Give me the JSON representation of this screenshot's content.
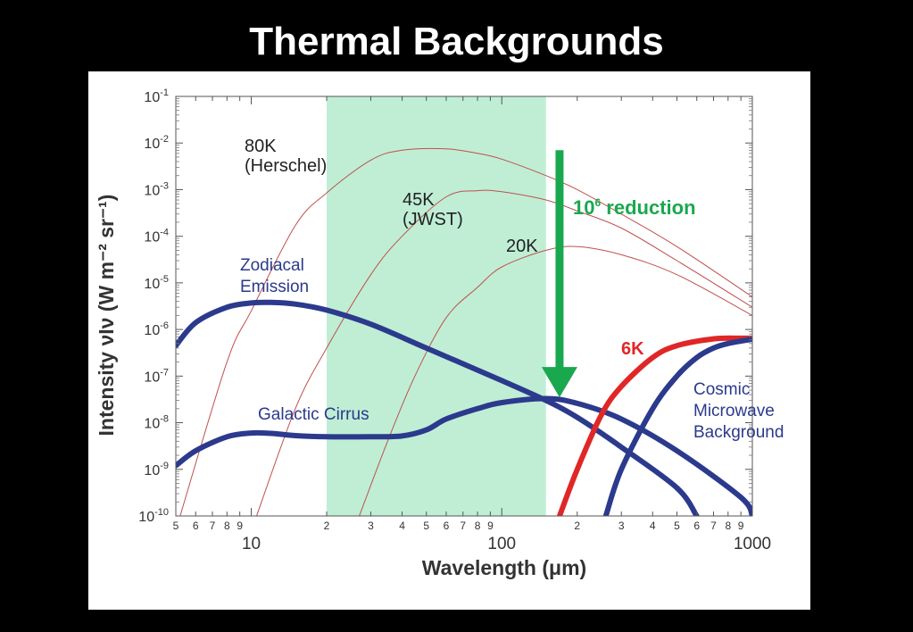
{
  "slide": {
    "title": "Thermal Backgrounds"
  },
  "chart_data": {
    "type": "line",
    "x_scale": "log",
    "y_scale": "log",
    "xlim": [
      5,
      1000
    ],
    "ylim": [
      1e-10,
      0.1
    ],
    "xlabel": "Wavelength (μm)",
    "ylabel": "Intensity νIν (W m⁻² sr⁻¹)",
    "grid": false,
    "x_major_ticks": [
      {
        "value": 10,
        "label": "10"
      },
      {
        "value": 100,
        "label": "100"
      },
      {
        "value": 1000,
        "label": "1000"
      }
    ],
    "x_minor_ticks": [
      {
        "value": 5,
        "label": "5"
      },
      {
        "value": 6,
        "label": "6"
      },
      {
        "value": 7,
        "label": "7"
      },
      {
        "value": 8,
        "label": "8"
      },
      {
        "value": 9,
        "label": "9"
      },
      {
        "value": 20,
        "label": "2"
      },
      {
        "value": 30,
        "label": "3"
      },
      {
        "value": 40,
        "label": "4"
      },
      {
        "value": 50,
        "label": "5"
      },
      {
        "value": 60,
        "label": "6"
      },
      {
        "value": 70,
        "label": "7"
      },
      {
        "value": 80,
        "label": "8"
      },
      {
        "value": 90,
        "label": "9"
      },
      {
        "value": 200,
        "label": "2"
      },
      {
        "value": 300,
        "label": "3"
      },
      {
        "value": 400,
        "label": "4"
      },
      {
        "value": 500,
        "label": "5"
      },
      {
        "value": 600,
        "label": "6"
      },
      {
        "value": 700,
        "label": "7"
      },
      {
        "value": 800,
        "label": "8"
      },
      {
        "value": 900,
        "label": "9"
      }
    ],
    "y_ticks": [
      {
        "value": 0.1,
        "base": "10",
        "exp": "-1"
      },
      {
        "value": 0.01,
        "base": "10",
        "exp": "-2"
      },
      {
        "value": 0.001,
        "base": "10",
        "exp": "-3"
      },
      {
        "value": 0.0001,
        "base": "10",
        "exp": "-4"
      },
      {
        "value": 1e-05,
        "base": "10",
        "exp": "-5"
      },
      {
        "value": 1e-06,
        "base": "10",
        "exp": "-6"
      },
      {
        "value": 1e-07,
        "base": "10",
        "exp": "-7"
      },
      {
        "value": 1e-08,
        "base": "10",
        "exp": "-8"
      },
      {
        "value": 1e-09,
        "base": "10",
        "exp": "-9"
      },
      {
        "value": 1e-10,
        "base": "10",
        "exp": "-10"
      }
    ],
    "shaded_band": {
      "x": [
        20,
        150
      ],
      "color": "#bfeed5"
    },
    "reduction_arrow": {
      "x": 170,
      "y_from": 0.007,
      "y_to": 3.5e-08,
      "color": "#1aa84f"
    },
    "series": [
      {
        "name": "80K (Herschel)",
        "color": "#c0504d",
        "width": 1,
        "x": [
          5.2,
          8,
          10,
          15,
          20,
          30,
          40,
          60,
          80,
          100,
          150,
          200,
          300,
          500,
          1000
        ],
        "y": [
          1e-10,
          2e-07,
          2.5e-06,
          0.00017,
          0.00085,
          0.0043,
          0.007,
          0.0075,
          0.006,
          0.0045,
          0.002,
          0.001,
          0.0003,
          6e-05,
          5e-06
        ]
      },
      {
        "name": "45K (JWST)",
        "color": "#c0504d",
        "width": 1,
        "x": [
          10.5,
          15,
          20,
          30,
          40,
          60,
          80,
          100,
          150,
          200,
          300,
          500,
          1000
        ],
        "y": [
          1e-10,
          2e-08,
          4e-07,
          1.5e-05,
          0.0001,
          0.0007,
          0.00095,
          0.0009,
          0.0006,
          0.00035,
          0.00015,
          3e-05,
          3e-06
        ]
      },
      {
        "name": "20K",
        "color": "#c0504d",
        "width": 1,
        "x": [
          27,
          35,
          45,
          60,
          80,
          100,
          150,
          200,
          300,
          500,
          1000
        ],
        "y": [
          1e-10,
          4e-09,
          1e-07,
          1.8e-06,
          8e-06,
          2.2e-05,
          5e-05,
          6e-05,
          4e-05,
          1.5e-05,
          2e-06
        ]
      },
      {
        "name": "Zodiacal Emission",
        "color": "#2b3a8c",
        "width": 6,
        "x": [
          5,
          6,
          8,
          10,
          12,
          15,
          20,
          30,
          50,
          100,
          150,
          200,
          300,
          500,
          600
        ],
        "y": [
          4.5e-07,
          1.4e-06,
          3e-06,
          3.7e-06,
          3.8e-06,
          3.5e-06,
          2.6e-06,
          1.3e-06,
          4e-07,
          8e-08,
          3e-08,
          1.3e-08,
          3e-09,
          4e-10,
          1e-10
        ]
      },
      {
        "name": "Galactic Cirrus",
        "color": "#2b3a8c",
        "width": 6,
        "x": [
          5,
          6,
          8,
          10,
          12,
          15,
          20,
          30,
          40,
          50,
          60,
          80,
          100,
          150,
          200,
          300,
          500,
          900,
          1000
        ],
        "y": [
          1.2e-09,
          2.5e-09,
          5e-09,
          6e-09,
          5.9e-09,
          5.3e-09,
          5e-09,
          5e-09,
          5.2e-09,
          7e-09,
          1.2e-08,
          2e-08,
          2.7e-08,
          3.3e-08,
          2.6e-08,
          1.2e-08,
          2.5e-09,
          2.5e-10,
          1e-10
        ]
      },
      {
        "name": "6K",
        "color": "#e02727",
        "width": 6,
        "x": [
          170,
          200,
          250,
          300,
          400,
          500,
          700,
          900,
          1000
        ],
        "y": [
          1e-10,
          1e-09,
          1.5e-08,
          6e-08,
          2.5e-07,
          4.5e-07,
          6.3e-07,
          6.5e-07,
          6.5e-07
        ]
      },
      {
        "name": "Cosmic Microwave Background",
        "color": "#2b3a8c",
        "width": 6,
        "x": [
          260,
          300,
          400,
          500,
          600,
          700,
          800,
          1000
        ],
        "y": [
          1e-10,
          1e-09,
          2e-08,
          1e-07,
          2.5e-07,
          4e-07,
          5e-07,
          6.2e-07
        ]
      }
    ],
    "annotations": [
      {
        "id": "80k",
        "lines": [
          "80K",
          "(Herschel)"
        ],
        "color": "#222"
      },
      {
        "id": "45k",
        "lines": [
          "45K",
          "(JWST)"
        ],
        "color": "#222"
      },
      {
        "id": "20k",
        "lines": [
          "20K"
        ],
        "color": "#222"
      },
      {
        "id": "zodi",
        "lines": [
          "Zodiacal",
          "Emission"
        ],
        "color": "#2b3a8c"
      },
      {
        "id": "cirrus",
        "lines": [
          "Galactic Cirrus"
        ],
        "color": "#2b3a8c"
      },
      {
        "id": "6k",
        "lines": [
          "6K"
        ],
        "color": "#e02727"
      },
      {
        "id": "cmb",
        "lines": [
          "Cosmic",
          "Microwave",
          "Background"
        ],
        "color": "#2b3a8c"
      },
      {
        "id": "reduction",
        "base": "10",
        "exp": "6",
        "text": " reduction",
        "color": "#1aa84f"
      }
    ]
  }
}
